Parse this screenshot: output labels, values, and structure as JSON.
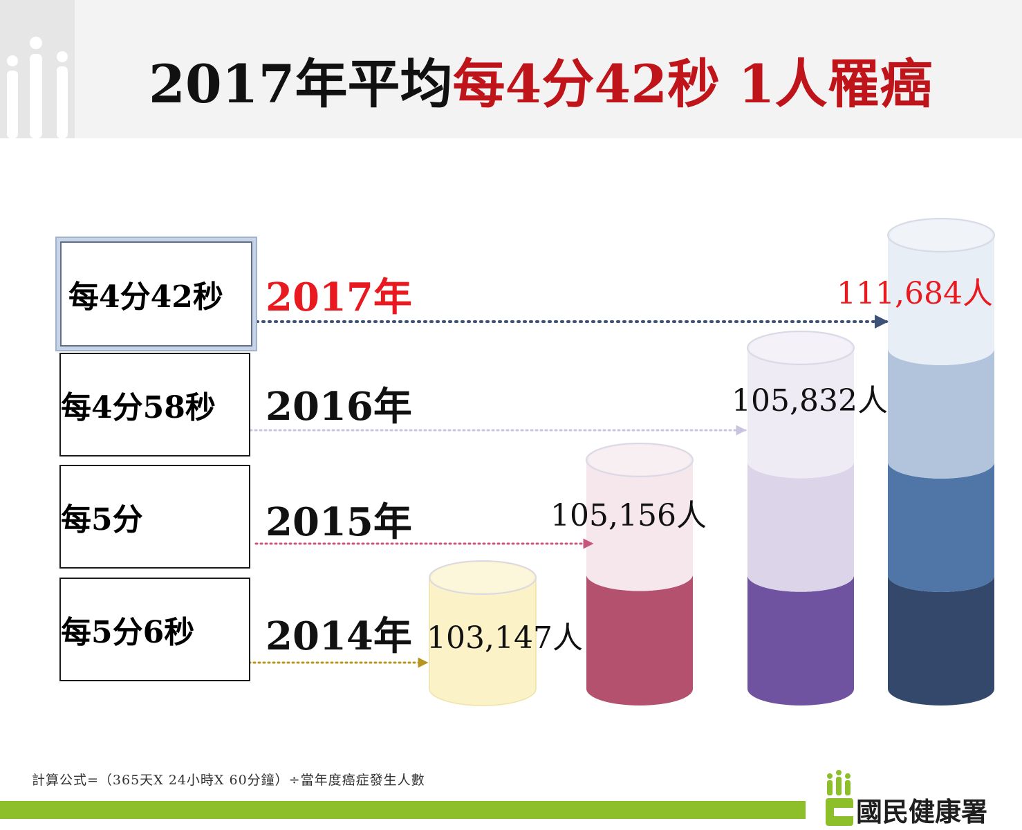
{
  "title": {
    "prefix": "2017年平均",
    "highlight": "每4分42秒 1人罹癌"
  },
  "colors": {
    "highlight_red": "#c0141b",
    "brand_green": "#8cbf2a",
    "line_2017": "#3d5278",
    "line_2016": "#c9c3e0",
    "line_2015": "#c6577a",
    "line_2014": "#b8951f"
  },
  "rows": [
    {
      "rate": "每4分42秒",
      "year": "2017年",
      "count": "111,684人"
    },
    {
      "rate": "每4分58秒",
      "year": "2016年",
      "count": "105,832人"
    },
    {
      "rate": "每5分",
      "year": "2015年",
      "count": "105,156人"
    },
    {
      "rate": "每5分6秒",
      "year": "2014年",
      "count": "103,147人"
    }
  ],
  "chart_data": {
    "type": "bar",
    "categories": [
      "2014年",
      "2015年",
      "2016年",
      "2017年"
    ],
    "values": [
      103147,
      105156,
      105832,
      111684
    ],
    "data_labels": [
      "103,147人",
      "105,156人",
      "105,832人",
      "111,684人"
    ],
    "rate_labels": [
      "每5分6秒",
      "每5分",
      "每4分58秒",
      "每4分42秒"
    ]
  },
  "footer": {
    "formula": "計算公式=（365天X 24小時X 60分鐘）÷當年度癌症發生人數",
    "logo_text": "國民健康署"
  }
}
